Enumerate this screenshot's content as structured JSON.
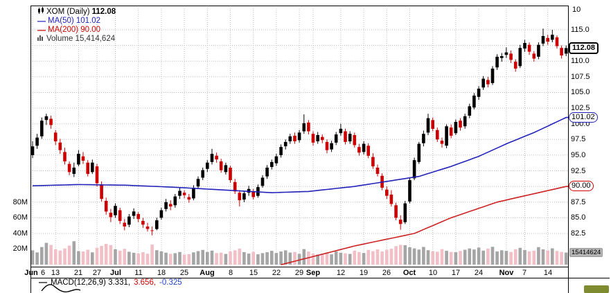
{
  "legend": {
    "symbol_label": "XOM (Daily)",
    "last_price": "112.08",
    "ma50_label": "MA(50) 101.02",
    "ma200_label": "MA(200) 90.00",
    "volume_label": "Volume 15,414,624"
  },
  "macd": {
    "label": "MACD(12,26,9) 3.331,",
    "signal": "3.656,",
    "hist": "-0.325"
  },
  "badges": {
    "price": "112.08",
    "ma50": "101.02",
    "ma200": "90.00",
    "volume": "15414624"
  },
  "axes": {
    "partial_top_label": "10"
  },
  "colors": {
    "up_candle": "#000000",
    "down_candle": "#cc0000",
    "ma50": "#2222bb",
    "ma200": "#cc2222",
    "volume_up": "#a5a5a5",
    "volume_down": "#f2bfc6",
    "grid": "#bbbbbb"
  },
  "chart_data": {
    "type": "candlestick",
    "title": "XOM (Daily)",
    "last_close": 112.08,
    "ma50_last": 101.02,
    "ma200_last": 90.0,
    "volume_last_label": "15,414,624",
    "legend_position": "top-left",
    "grid": "dotted",
    "price_axis_labels": [
      115.0,
      110.0,
      107.5,
      105.0,
      102.5,
      100.0,
      97.5,
      95.0,
      92.5,
      87.5,
      85.0,
      82.5
    ],
    "grid_prices": [
      115,
      112.5,
      110,
      107.5,
      105,
      102.5,
      100,
      97.5,
      95,
      92.5,
      90,
      87.5,
      85,
      82.5
    ],
    "volume_axis_labels": [
      80,
      60,
      40,
      20
    ],
    "x_ticks": [
      {
        "i": 0,
        "label": "Jun",
        "bold": true,
        "dx": -2,
        "grid": true
      },
      {
        "i": 0,
        "label": "6",
        "dx": 15
      },
      {
        "i": 5,
        "label": "13",
        "grid": true
      },
      {
        "i": 10,
        "label": "21",
        "grid": true
      },
      {
        "i": 14,
        "label": "27",
        "grid": true
      },
      {
        "i": 18,
        "label": "Jul",
        "bold": true,
        "grid": true
      },
      {
        "i": 23,
        "label": "11",
        "grid": true
      },
      {
        "i": 28,
        "label": "18",
        "grid": true
      },
      {
        "i": 33,
        "label": "25",
        "grid": true
      },
      {
        "i": 38,
        "label": "Aug",
        "bold": true,
        "grid": true
      },
      {
        "i": 43,
        "label": "8",
        "grid": true
      },
      {
        "i": 48,
        "label": "15",
        "grid": true
      },
      {
        "i": 53,
        "label": "22",
        "grid": true
      },
      {
        "i": 58,
        "label": "29",
        "grid": true
      },
      {
        "i": 61,
        "label": "Sep",
        "bold": true,
        "grid": true
      },
      {
        "i": 67,
        "label": "12",
        "grid": true
      },
      {
        "i": 72,
        "label": "19",
        "grid": true
      },
      {
        "i": 77,
        "label": "26",
        "grid": true
      },
      {
        "i": 82,
        "label": "Oct",
        "bold": true,
        "grid": true
      },
      {
        "i": 87,
        "label": "10",
        "grid": true
      },
      {
        "i": 92,
        "label": "17",
        "grid": true
      },
      {
        "i": 97,
        "label": "24",
        "grid": true
      },
      {
        "i": 103,
        "label": "Nov",
        "bold": true,
        "grid": true
      },
      {
        "i": 107,
        "label": "7",
        "grid": true
      },
      {
        "i": 112,
        "label": "14",
        "grid": true
      }
    ],
    "candles": [
      [
        95.0,
        97.2,
        94.5,
        96.4
      ],
      [
        96.5,
        98.4,
        96.0,
        97.8
      ],
      [
        98.0,
        101.0,
        97.6,
        100.5
      ],
      [
        100.6,
        101.6,
        99.8,
        101.2
      ],
      [
        100.8,
        101.3,
        99.2,
        99.8
      ],
      [
        98.6,
        99.0,
        96.6,
        97.2
      ],
      [
        97.0,
        97.6,
        95.2,
        95.8
      ],
      [
        95.5,
        96.2,
        93.5,
        94.0
      ],
      [
        93.6,
        94.0,
        91.8,
        92.3
      ],
      [
        92.0,
        93.8,
        91.5,
        93.0
      ],
      [
        93.5,
        95.8,
        93.2,
        95.2
      ],
      [
        94.8,
        95.5,
        93.6,
        94.1
      ],
      [
        93.8,
        94.2,
        91.6,
        92.0
      ],
      [
        92.3,
        94.3,
        92.0,
        93.8
      ],
      [
        93.2,
        93.6,
        90.0,
        90.5
      ],
      [
        90.2,
        90.8,
        87.6,
        88.0
      ],
      [
        87.7,
        88.2,
        85.5,
        86.0
      ],
      [
        85.8,
        86.4,
        84.3,
        85.1
      ],
      [
        85.4,
        87.3,
        85.0,
        86.9
      ],
      [
        86.2,
        86.6,
        84.0,
        84.5
      ],
      [
        84.2,
        84.8,
        83.0,
        83.6
      ],
      [
        83.9,
        85.6,
        83.5,
        85.2
      ],
      [
        85.3,
        86.5,
        84.8,
        86.0
      ],
      [
        85.6,
        85.9,
        84.3,
        84.8
      ],
      [
        84.5,
        85.0,
        83.4,
        83.9
      ],
      [
        83.6,
        84.2,
        82.8,
        83.2
      ],
      [
        83.0,
        83.6,
        82.2,
        82.9
      ],
      [
        83.2,
        85.0,
        83.0,
        84.6
      ],
      [
        85.0,
        86.6,
        84.7,
        86.2
      ],
      [
        86.4,
        88.0,
        86.0,
        87.5
      ],
      [
        87.2,
        87.8,
        86.2,
        86.8
      ],
      [
        87.0,
        88.8,
        86.6,
        88.4
      ],
      [
        88.5,
        89.8,
        88.0,
        89.3
      ],
      [
        89.0,
        89.4,
        88.1,
        88.6
      ],
      [
        88.3,
        88.8,
        87.4,
        87.9
      ],
      [
        88.1,
        90.2,
        87.8,
        89.8
      ],
      [
        90.0,
        91.6,
        89.6,
        91.2
      ],
      [
        91.4,
        93.0,
        91.0,
        92.6
      ],
      [
        92.8,
        94.2,
        92.3,
        93.8
      ],
      [
        93.9,
        96.0,
        93.5,
        95.2
      ],
      [
        94.9,
        95.4,
        93.8,
        94.3
      ],
      [
        94.0,
        94.4,
        92.2,
        92.6
      ],
      [
        92.3,
        93.8,
        91.9,
        93.4
      ],
      [
        93.0,
        93.3,
        90.6,
        91.0
      ],
      [
        90.7,
        91.2,
        88.8,
        89.2
      ],
      [
        89.0,
        89.4,
        86.8,
        87.8
      ],
      [
        87.9,
        89.3,
        87.5,
        88.9
      ],
      [
        89.0,
        90.1,
        88.5,
        89.6
      ],
      [
        89.2,
        89.6,
        87.9,
        88.3
      ],
      [
        88.5,
        90.3,
        88.2,
        89.9
      ],
      [
        90.1,
        91.8,
        89.8,
        91.4
      ],
      [
        91.6,
        93.4,
        91.2,
        93.0
      ],
      [
        93.1,
        94.3,
        92.7,
        93.9
      ],
      [
        93.7,
        95.2,
        93.3,
        94.8
      ],
      [
        95.0,
        96.7,
        94.6,
        96.3
      ],
      [
        96.4,
        97.5,
        95.9,
        97.1
      ],
      [
        97.2,
        98.4,
        96.8,
        98.0
      ],
      [
        98.1,
        98.6,
        96.8,
        97.2
      ],
      [
        97.4,
        99.0,
        97.0,
        98.6
      ],
      [
        98.8,
        101.5,
        98.4,
        100.1
      ],
      [
        100.2,
        100.6,
        98.3,
        98.8
      ],
      [
        98.4,
        98.8,
        96.5,
        97.0
      ],
      [
        97.2,
        98.7,
        96.8,
        98.2
      ],
      [
        97.9,
        98.3,
        96.9,
        97.4
      ],
      [
        97.1,
        97.5,
        95.3,
        95.8
      ],
      [
        95.9,
        97.3,
        95.5,
        96.9
      ],
      [
        97.0,
        98.7,
        96.6,
        98.3
      ],
      [
        98.5,
        100.0,
        98.1,
        99.2
      ],
      [
        98.8,
        99.2,
        96.7,
        97.1
      ],
      [
        97.2,
        98.8,
        96.8,
        98.4
      ],
      [
        98.2,
        98.6,
        96.2,
        96.6
      ],
      [
        96.3,
        96.8,
        94.9,
        95.4
      ],
      [
        95.5,
        97.2,
        95.1,
        96.8
      ],
      [
        96.5,
        96.9,
        94.5,
        94.9
      ],
      [
        94.7,
        95.3,
        92.8,
        93.2
      ],
      [
        93.0,
        93.5,
        91.6,
        92.0
      ],
      [
        91.7,
        92.1,
        89.4,
        89.8
      ],
      [
        89.5,
        90.0,
        88.0,
        88.5
      ],
      [
        88.7,
        89.4,
        86.8,
        87.2
      ],
      [
        87.0,
        87.4,
        84.6,
        85.0
      ],
      [
        84.7,
        85.4,
        83.1,
        84.0
      ],
      [
        84.3,
        87.7,
        84.0,
        87.3
      ],
      [
        87.6,
        91.4,
        87.3,
        91.0
      ],
      [
        91.3,
        94.6,
        91.0,
        94.2
      ],
      [
        93.9,
        97.1,
        93.6,
        96.8
      ],
      [
        96.9,
        98.9,
        96.4,
        98.4
      ],
      [
        98.6,
        101.6,
        98.2,
        100.9
      ],
      [
        100.6,
        101.0,
        98.8,
        99.2
      ],
      [
        99.0,
        99.4,
        97.1,
        97.5
      ],
      [
        97.3,
        97.8,
        96.2,
        96.8
      ],
      [
        96.5,
        99.9,
        96.1,
        99.6
      ],
      [
        99.4,
        99.9,
        97.7,
        98.1
      ],
      [
        98.5,
        100.7,
        98.2,
        100.3
      ],
      [
        100.5,
        100.9,
        98.9,
        99.4
      ],
      [
        99.6,
        101.6,
        99.2,
        101.2
      ],
      [
        101.3,
        103.2,
        100.9,
        102.8
      ],
      [
        102.6,
        104.9,
        102.3,
        104.5
      ],
      [
        104.3,
        106.0,
        103.8,
        105.6
      ],
      [
        105.8,
        107.6,
        105.4,
        107.2
      ],
      [
        107.0,
        107.5,
        105.8,
        106.3
      ],
      [
        106.5,
        109.2,
        106.2,
        108.8
      ],
      [
        109.0,
        111.1,
        108.6,
        110.7
      ],
      [
        110.5,
        111.3,
        109.9,
        110.8
      ],
      [
        111.0,
        112.2,
        110.5,
        111.4
      ],
      [
        111.2,
        111.7,
        109.7,
        110.2
      ],
      [
        109.9,
        110.3,
        108.3,
        108.8
      ],
      [
        109.2,
        112.6,
        108.9,
        112.1
      ],
      [
        112.0,
        113.4,
        111.5,
        112.9
      ],
      [
        112.6,
        113.0,
        111.0,
        111.5
      ],
      [
        111.2,
        111.6,
        109.9,
        110.4
      ],
      [
        110.7,
        113.0,
        110.3,
        112.6
      ],
      [
        112.8,
        115.2,
        112.4,
        114.0
      ],
      [
        113.7,
        114.2,
        112.6,
        113.1
      ],
      [
        113.4,
        115.0,
        113.0,
        114.2
      ],
      [
        113.8,
        114.1,
        112.0,
        112.4
      ],
      [
        112.1,
        112.5,
        110.4,
        110.9
      ],
      [
        111.2,
        112.5,
        110.8,
        112.08
      ]
    ],
    "volumes_millions": [
      18.2,
      15.6,
      22.4,
      27.8,
      25.1,
      19.4,
      18.0,
      20.6,
      24.3,
      29.8,
      17.2,
      16.8,
      18.9,
      15.7,
      21.4,
      23.8,
      26.5,
      24.9,
      19.6,
      17.8,
      20.2,
      16.4,
      15.1,
      14.2,
      15.8,
      13.9,
      25.6,
      18.4,
      16.9,
      15.2,
      13.8,
      14.6,
      16.1,
      12.9,
      13.4,
      15.7,
      17.3,
      18.8,
      16.2,
      17.9,
      14.8,
      15.3,
      13.6,
      16.7,
      18.1,
      20.4,
      15.9,
      14.1,
      16.3,
      13.2,
      14.7,
      15.8,
      17.6,
      14.9,
      16.8,
      18.2,
      15.4,
      16.1,
      13.7,
      19.8,
      16.6,
      13.9,
      12.8,
      14.2,
      15.6,
      13.1,
      16.9,
      15.2,
      14.4,
      13.6,
      17.8,
      16.1,
      14.9,
      18.6,
      17.2,
      19.4,
      16.8,
      18.9,
      20.3,
      23.6,
      25.2,
      24.8,
      22.1,
      20.7,
      19.2,
      22.6,
      18.4,
      17.1,
      16.5,
      19.8,
      17.6,
      16.2,
      15.8,
      17.4,
      18.9,
      20.6,
      19.3,
      21.8,
      17.9,
      20.4,
      22.7,
      16.8,
      18.3,
      17.5,
      16.1,
      19.7,
      21.4,
      18.6,
      16.9,
      17.8,
      22.3,
      19.5,
      18.1,
      20.8,
      17.4,
      16.2,
      15.4
    ],
    "ma50_anchors": [
      [
        0,
        90.1
      ],
      [
        10,
        90.3
      ],
      [
        20,
        90.2
      ],
      [
        30,
        89.9
      ],
      [
        40,
        89.5
      ],
      [
        52,
        89.0
      ],
      [
        60,
        89.2
      ],
      [
        70,
        90.0
      ],
      [
        77,
        90.8
      ],
      [
        84,
        91.6
      ],
      [
        91,
        93.2
      ],
      [
        97,
        94.8
      ],
      [
        103,
        96.8
      ],
      [
        109,
        98.6
      ],
      [
        116,
        101.0
      ]
    ],
    "ma200_anchors": [
      [
        54,
        77.5
      ],
      [
        70,
        80.5
      ],
      [
        83,
        82.5
      ],
      [
        91,
        85.0
      ],
      [
        101,
        87.5
      ],
      [
        110,
        89.0
      ],
      [
        116,
        90.0
      ]
    ]
  }
}
